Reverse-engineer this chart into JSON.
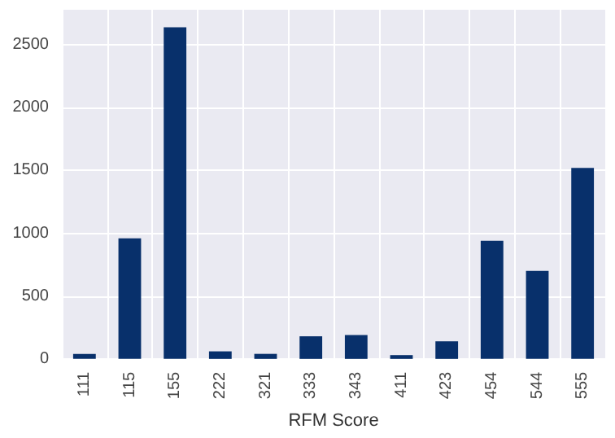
{
  "chart_data": {
    "type": "bar",
    "xlabel": "RFM Score",
    "categories": [
      "111",
      "115",
      "155",
      "222",
      "321",
      "333",
      "343",
      "411",
      "423",
      "454",
      "544",
      "555"
    ],
    "values": [
      40,
      960,
      2640,
      60,
      40,
      180,
      190,
      30,
      140,
      940,
      700,
      1520
    ],
    "color": "#08306b",
    "ylim": [
      0,
      2780
    ],
    "yticks": [
      0,
      500,
      1000,
      1500,
      2000,
      2500
    ],
    "grid": true
  }
}
